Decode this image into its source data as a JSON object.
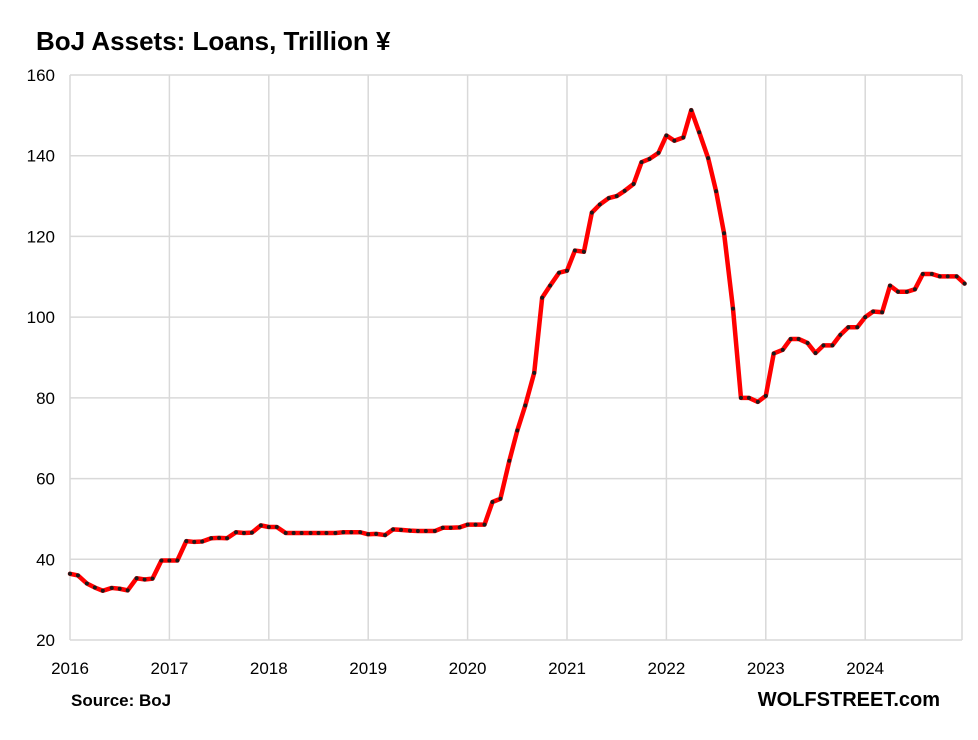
{
  "chart_data": {
    "type": "line",
    "title": "BoJ Assets: Loans, Trillion ¥",
    "xlabel": "",
    "ylabel": "",
    "xlim": [
      2016,
      2024.92
    ],
    "ylim": [
      20,
      160
    ],
    "yticks": [
      20,
      40,
      60,
      80,
      100,
      120,
      140,
      160
    ],
    "xticks": [
      "2016",
      "2017",
      "2018",
      "2019",
      "2020",
      "2021",
      "2022",
      "2023",
      "2024"
    ],
    "grid": true,
    "line_color": "#ff0000",
    "marker_color": "#1a1a1a",
    "series": [
      {
        "values": [
          [
            2016.0,
            36.4
          ],
          [
            2016.08,
            36.0
          ],
          [
            2016.17,
            34.0
          ],
          [
            2016.25,
            33.0
          ],
          [
            2016.33,
            32.2
          ],
          [
            2016.42,
            32.9
          ],
          [
            2016.5,
            32.7
          ],
          [
            2016.58,
            32.3
          ],
          [
            2016.67,
            35.3
          ],
          [
            2016.75,
            35.0
          ],
          [
            2016.83,
            35.2
          ],
          [
            2016.92,
            39.7
          ],
          [
            2017.0,
            39.7
          ],
          [
            2017.08,
            39.7
          ],
          [
            2017.17,
            44.5
          ],
          [
            2017.25,
            44.3
          ],
          [
            2017.33,
            44.4
          ],
          [
            2017.42,
            45.2
          ],
          [
            2017.5,
            45.3
          ],
          [
            2017.58,
            45.2
          ],
          [
            2017.67,
            46.7
          ],
          [
            2017.75,
            46.5
          ],
          [
            2017.83,
            46.6
          ],
          [
            2017.92,
            48.4
          ],
          [
            2018.0,
            48.0
          ],
          [
            2018.08,
            48.0
          ],
          [
            2018.17,
            46.5
          ],
          [
            2018.25,
            46.5
          ],
          [
            2018.33,
            46.5
          ],
          [
            2018.42,
            46.5
          ],
          [
            2018.5,
            46.5
          ],
          [
            2018.58,
            46.5
          ],
          [
            2018.67,
            46.5
          ],
          [
            2018.75,
            46.7
          ],
          [
            2018.83,
            46.7
          ],
          [
            2018.92,
            46.7
          ],
          [
            2019.0,
            46.2
          ],
          [
            2019.08,
            46.3
          ],
          [
            2019.17,
            46.0
          ],
          [
            2019.25,
            47.4
          ],
          [
            2019.33,
            47.3
          ],
          [
            2019.42,
            47.1
          ],
          [
            2019.5,
            47.0
          ],
          [
            2019.58,
            47.0
          ],
          [
            2019.67,
            47.0
          ],
          [
            2019.75,
            47.8
          ],
          [
            2019.83,
            47.8
          ],
          [
            2019.92,
            47.9
          ],
          [
            2020.0,
            48.6
          ],
          [
            2020.08,
            48.6
          ],
          [
            2020.17,
            48.6
          ],
          [
            2020.25,
            54.2
          ],
          [
            2020.33,
            55.0
          ],
          [
            2020.42,
            64.4
          ],
          [
            2020.5,
            71.9
          ],
          [
            2020.58,
            78.1
          ],
          [
            2020.67,
            86.2
          ],
          [
            2020.75,
            104.8
          ],
          [
            2020.83,
            107.8
          ],
          [
            2020.92,
            111.0
          ],
          [
            2021.0,
            111.5
          ],
          [
            2021.08,
            116.5
          ],
          [
            2021.17,
            116.2
          ],
          [
            2021.25,
            125.9
          ],
          [
            2021.33,
            127.9
          ],
          [
            2021.42,
            129.5
          ],
          [
            2021.5,
            130.0
          ],
          [
            2021.58,
            131.3
          ],
          [
            2021.67,
            133.0
          ],
          [
            2021.75,
            138.4
          ],
          [
            2021.83,
            139.2
          ],
          [
            2021.92,
            140.7
          ],
          [
            2022.0,
            145.0
          ],
          [
            2022.08,
            143.7
          ],
          [
            2022.17,
            144.5
          ],
          [
            2022.25,
            151.3
          ],
          [
            2022.33,
            145.8
          ],
          [
            2022.42,
            139.4
          ],
          [
            2022.5,
            131.2
          ],
          [
            2022.58,
            120.8
          ],
          [
            2022.67,
            102.1
          ],
          [
            2022.75,
            80.0
          ],
          [
            2022.83,
            80.0
          ],
          [
            2022.92,
            79.0
          ],
          [
            2023.0,
            80.5
          ],
          [
            2023.08,
            91.0
          ],
          [
            2023.17,
            91.9
          ],
          [
            2023.25,
            94.6
          ],
          [
            2023.33,
            94.6
          ],
          [
            2023.42,
            93.6
          ],
          [
            2023.5,
            91.1
          ],
          [
            2023.58,
            93.0
          ],
          [
            2023.67,
            93.0
          ],
          [
            2023.75,
            95.6
          ],
          [
            2023.83,
            97.5
          ],
          [
            2023.92,
            97.5
          ],
          [
            2024.0,
            100.0
          ],
          [
            2024.08,
            101.4
          ],
          [
            2024.17,
            101.2
          ],
          [
            2024.25,
            107.8
          ],
          [
            2024.33,
            106.3
          ],
          [
            2024.42,
            106.3
          ],
          [
            2024.5,
            106.9
          ],
          [
            2024.58,
            110.7
          ],
          [
            2024.67,
            110.7
          ],
          [
            2024.75,
            110.1
          ],
          [
            2024.83,
            110.1
          ],
          [
            2024.92,
            110.1
          ],
          [
            2025.0,
            108.3
          ]
        ]
      }
    ]
  },
  "footer": {
    "source": "Source: BoJ",
    "brand": "WOLFSTREET.com"
  }
}
